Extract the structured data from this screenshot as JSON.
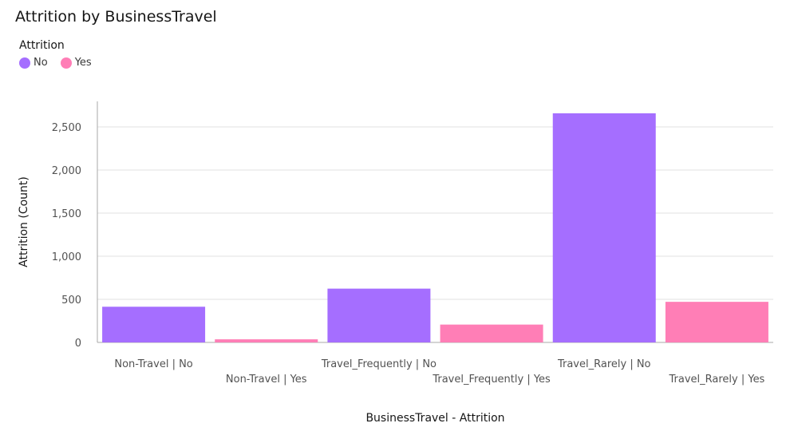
{
  "chart_data": {
    "type": "bar",
    "title": "Attrition by BusinessTravel",
    "xlabel": "BusinessTravel - Attrition",
    "ylabel": "Attrition (Count)",
    "ylim": [
      0,
      2800
    ],
    "yticks": [
      0,
      500,
      1000,
      1500,
      2000,
      2500
    ],
    "ytick_labels": [
      "0",
      "500",
      "1,000",
      "1,500",
      "2,000",
      "2,500"
    ],
    "grid": true,
    "legend": {
      "title": "Attrition",
      "placement": "top-left",
      "entries": [
        {
          "label": "No",
          "color": "#a56eff"
        },
        {
          "label": "Yes",
          "color": "#ff7eb6"
        }
      ]
    },
    "categories": [
      "Non-Travel | No",
      "Non-Travel | Yes",
      "Travel_Frequently | No",
      "Travel_Frequently | Yes",
      "Travel_Rarely | No",
      "Travel_Rarely | Yes"
    ],
    "groups": [
      "No",
      "Yes",
      "No",
      "Yes",
      "No",
      "Yes"
    ],
    "values": [
      414,
      36,
      624,
      207,
      2658,
      471
    ]
  }
}
